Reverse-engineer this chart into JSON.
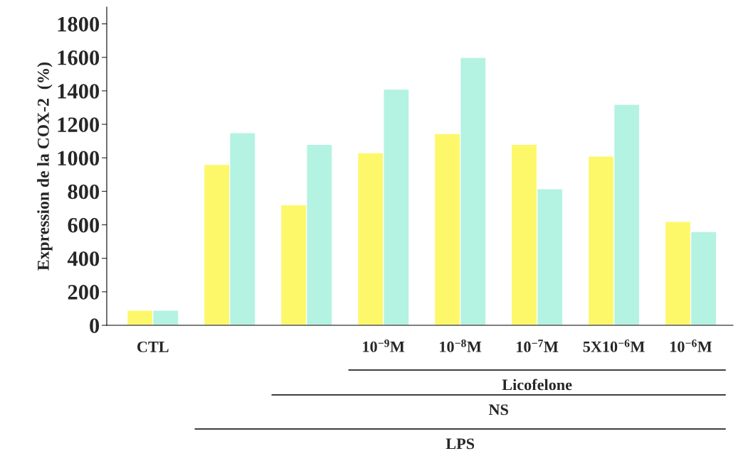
{
  "chart_data": {
    "type": "bar",
    "ylabel": "Expression de la COX-2  (%)",
    "categories": [
      "CTL",
      null,
      null,
      "10$^{−9}$M",
      "10$^{−8}$M",
      "10$^{−7}$M",
      "5X10$^{−6}$M",
      "10$^{−6}$M"
    ],
    "series": [
      {
        "color": "#fdf86a",
        "values": [
          90,
          960,
          720,
          1030,
          1145,
          1080,
          1010,
          620
        ]
      },
      {
        "color": "#b4f2e2",
        "values": [
          90,
          1150,
          1080,
          1410,
          1600,
          815,
          1320,
          560
        ]
      }
    ],
    "ylim": [
      0,
      1900
    ],
    "yticks": [
      0,
      200,
      400,
      600,
      800,
      1000,
      1200,
      1400,
      1600,
      1800
    ],
    "annotations": [
      "Licofelone",
      "NS",
      "LPS"
    ],
    "grid": false,
    "legend": false
  }
}
